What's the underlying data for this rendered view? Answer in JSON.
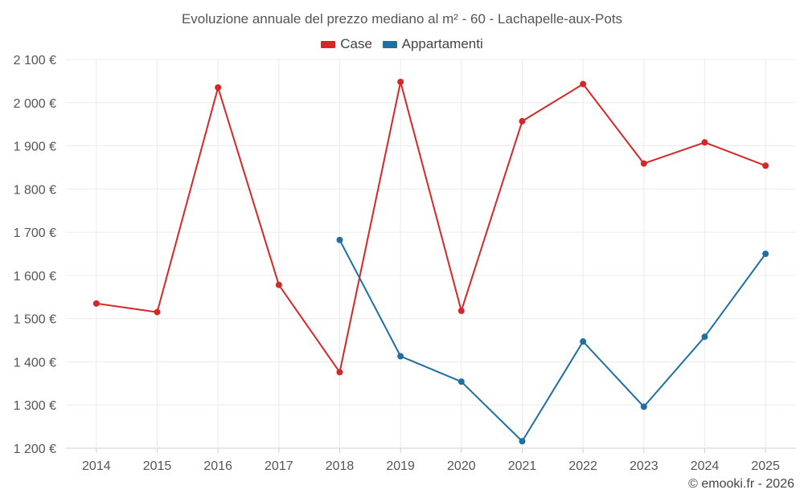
{
  "chart_data": {
    "type": "line",
    "title": "Evoluzione annuale del prezzo mediano al m² - 60 - Lachapelle-aux-Pots",
    "xlabel": "",
    "ylabel": "",
    "categories": [
      "2014",
      "2015",
      "2016",
      "2017",
      "2018",
      "2019",
      "2020",
      "2021",
      "2022",
      "2023",
      "2024",
      "2025"
    ],
    "ylim": [
      1200,
      2100
    ],
    "yticks": [
      1200,
      1300,
      1400,
      1500,
      1600,
      1700,
      1800,
      1900,
      2000,
      2100
    ],
    "ytick_labels": [
      "1 200 €",
      "1 300 €",
      "1 400 €",
      "1 500 €",
      "1 600 €",
      "1 700 €",
      "1 800 €",
      "1 900 €",
      "2 000 €",
      "2 100 €"
    ],
    "grid": true,
    "legend_position": "top-center",
    "series": [
      {
        "name": "Case",
        "color": "#d62728",
        "values": [
          1535,
          1515,
          2035,
          1578,
          1376,
          2048,
          1518,
          1957,
          2043,
          1859,
          1908,
          1854
        ]
      },
      {
        "name": "Appartamenti",
        "color": "#1f6fa3",
        "values": [
          null,
          null,
          null,
          null,
          1682,
          1413,
          1354,
          1216,
          1447,
          1296,
          1458,
          1650
        ]
      }
    ]
  },
  "credit": "© emooki.fr - 2026"
}
